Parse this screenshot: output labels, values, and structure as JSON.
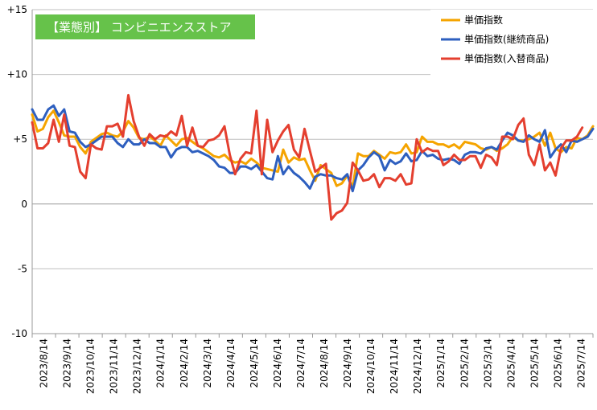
{
  "chart_data": {
    "type": "line",
    "title": "【業態別】 コンビニエンスストア",
    "ylim": [
      -10,
      15
    ],
    "y_ticks": [
      "+15",
      "+10",
      "+5",
      "0",
      "-5",
      "-10"
    ],
    "y_tick_values": [
      15,
      10,
      5,
      0,
      -5,
      -10
    ],
    "grid": "horizontal",
    "legend_position": "top-right",
    "x_tick_labels": [
      "2023/8/14",
      "2023/9/14",
      "2023/10/14",
      "2023/11/14",
      "2023/12/14",
      "2024/1/14",
      "2024/2/14",
      "2024/3/14",
      "2024/4/14",
      "2024/5/14",
      "2024/6/14",
      "2024/7/14",
      "2024/8/14",
      "2024/9/14",
      "2024/10/14",
      "2024/11/14",
      "2024/12/14",
      "2025/1/14",
      "2025/2/14",
      "2025/3/14",
      "2025/4/14",
      "2025/5/14",
      "2025/6/14",
      "2025/7/14"
    ],
    "series": [
      {
        "name": "単価指数",
        "color": "#f5a400",
        "values": [
          6.9,
          5.6,
          5.8,
          6.7,
          7.2,
          6.3,
          5.3,
          5.2,
          5.2,
          4.4,
          3.9,
          4.8,
          5.1,
          5.4,
          5.5,
          5.3,
          5.2,
          5.6,
          6.4,
          5.9,
          5.1,
          5.0,
          5.2,
          4.9,
          4.5,
          5.3,
          4.9,
          4.5,
          5.0,
          5.1,
          4.8,
          4.5,
          4.3,
          4.0,
          3.7,
          3.6,
          3.8,
          3.4,
          3.2,
          3.3,
          3.1,
          3.5,
          3.2,
          2.8,
          2.7,
          2.6,
          2.5,
          4.2,
          3.2,
          3.6,
          3.4,
          3.5,
          2.6,
          1.8,
          3.0,
          2.7,
          2.4,
          1.4,
          1.6,
          2.2,
          1.3,
          3.9,
          3.7,
          3.7,
          4.1,
          3.8,
          3.5,
          4.0,
          3.9,
          4.0,
          4.6,
          3.9,
          4.0,
          5.2,
          4.8,
          4.8,
          4.6,
          4.6,
          4.4,
          4.6,
          4.3,
          4.8,
          4.7,
          4.6,
          4.3,
          4.2,
          4.4,
          4.1,
          4.3,
          4.6,
          5.2,
          4.9,
          4.9,
          5.0,
          5.2,
          5.5,
          4.5,
          5.5,
          4.3,
          4.0,
          4.4,
          4.3,
          5.1,
          5.0,
          5.3,
          6.0
        ]
      },
      {
        "name": "単価指数(継続商品)",
        "color": "#2e5fbf",
        "values": [
          7.3,
          6.5,
          6.5,
          7.3,
          7.6,
          6.8,
          7.3,
          5.6,
          5.5,
          4.8,
          4.4,
          4.6,
          4.9,
          5.2,
          5.2,
          5.2,
          4.7,
          4.4,
          5.0,
          4.6,
          4.6,
          5.0,
          4.7,
          4.7,
          4.4,
          4.4,
          3.6,
          4.2,
          4.4,
          4.4,
          4.0,
          4.1,
          3.9,
          3.7,
          3.4,
          2.9,
          2.8,
          2.4,
          2.4,
          2.9,
          2.9,
          2.7,
          3.0,
          2.5,
          2.0,
          1.9,
          3.7,
          2.3,
          2.9,
          2.4,
          2.1,
          1.7,
          1.2,
          2.1,
          2.3,
          2.2,
          2.2,
          2.0,
          1.9,
          2.3,
          1.0,
          2.6,
          3.0,
          3.6,
          4.0,
          3.7,
          2.6,
          3.4,
          3.1,
          3.3,
          3.9,
          3.3,
          3.4,
          4.1,
          3.7,
          3.8,
          3.5,
          3.4,
          3.5,
          3.4,
          3.1,
          3.8,
          4.0,
          4.0,
          3.9,
          4.3,
          4.4,
          4.2,
          4.9,
          5.5,
          5.3,
          4.9,
          4.8,
          5.3,
          5.0,
          4.8,
          5.7,
          3.6,
          4.2,
          4.6,
          4.0,
          4.9,
          4.8,
          5.0,
          5.2,
          5.8
        ]
      },
      {
        "name": "単価指数(入替商品)",
        "color": "#e43f2f",
        "values": [
          6.3,
          4.3,
          4.3,
          4.7,
          6.5,
          4.8,
          6.9,
          4.5,
          4.4,
          2.5,
          2.0,
          4.6,
          4.3,
          4.2,
          6.0,
          6.0,
          6.2,
          5.2,
          8.4,
          6.4,
          5.2,
          4.5,
          5.4,
          5.0,
          5.3,
          5.2,
          5.6,
          5.3,
          6.8,
          4.5,
          5.9,
          4.5,
          4.4,
          4.9,
          5.0,
          5.3,
          6.0,
          3.8,
          2.3,
          3.5,
          4.0,
          3.9,
          7.2,
          2.3,
          6.5,
          4.0,
          4.9,
          5.6,
          6.1,
          4.2,
          3.6,
          5.8,
          4.1,
          2.5,
          2.8,
          3.1,
          -1.2,
          -0.7,
          -0.5,
          0.1,
          3.2,
          2.6,
          1.8,
          1.9,
          2.3,
          1.3,
          2.0,
          2.0,
          1.8,
          2.3,
          1.5,
          1.6,
          5.0,
          4.0,
          4.3,
          4.1,
          4.1,
          3.0,
          3.3,
          3.8,
          3.4,
          3.4,
          3.7,
          3.7,
          2.8,
          3.8,
          3.6,
          3.0,
          5.2,
          5.2,
          5.0,
          6.1,
          6.6,
          3.8,
          3.0,
          4.6,
          2.6,
          3.2,
          2.2,
          4.3,
          4.9,
          4.9,
          5.2,
          5.9
        ]
      }
    ]
  }
}
